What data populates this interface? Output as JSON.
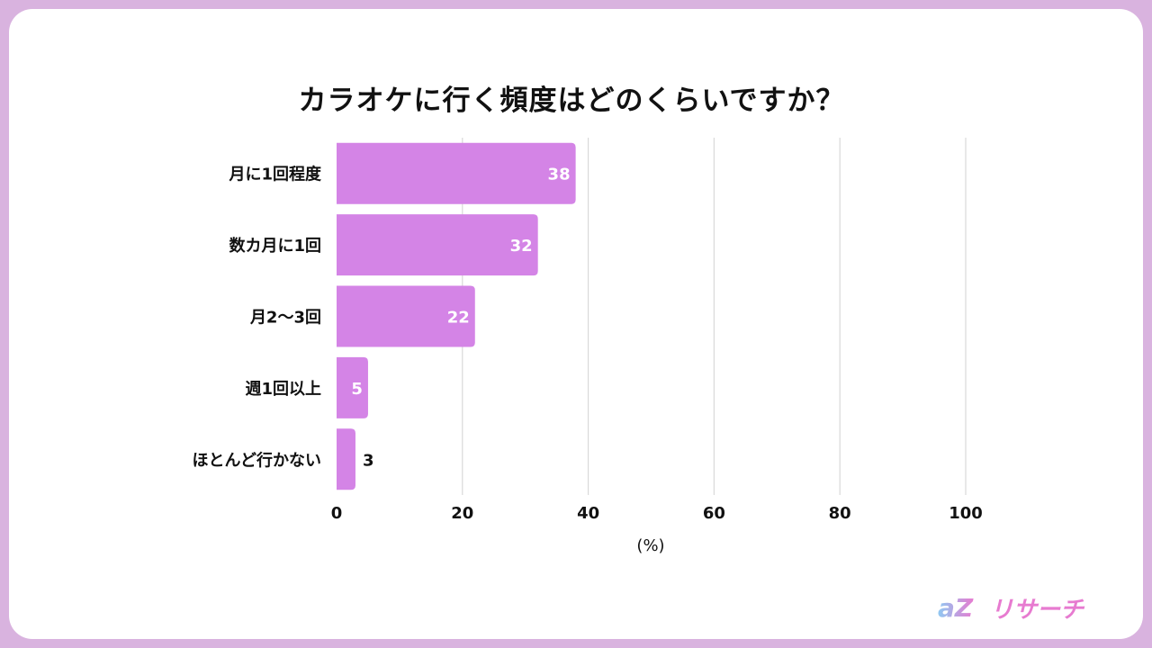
{
  "title": "カラオケに行く頻度はどのくらいですか？",
  "logo": {
    "text": "リサーチ",
    "mark": "aZ"
  },
  "colors": {
    "frame": "#d9b3df",
    "bar": "#d484e6",
    "grid": "#d9d9d9"
  },
  "chart_data": {
    "type": "bar",
    "orientation": "horizontal",
    "categories": [
      "月に1回程度",
      "数カ月に1回",
      "月2〜3回",
      "週1回以上",
      "ほとんど行かない"
    ],
    "values": [
      38,
      32,
      22,
      5,
      3
    ],
    "xlabel": "(%)",
    "xlim": [
      0,
      100
    ],
    "xticks": [
      0,
      20,
      40,
      60,
      80,
      100
    ],
    "grid": true,
    "legend": "none"
  }
}
